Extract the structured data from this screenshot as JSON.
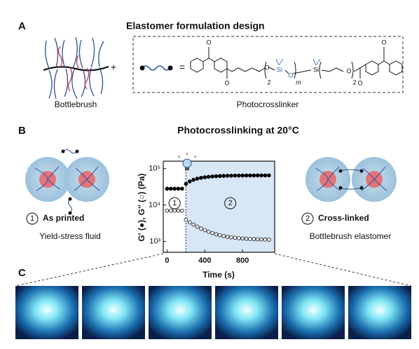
{
  "panel_a": {
    "label": "A",
    "title": "Elastomer formulation design",
    "bottlebrush": "Bottlebrush",
    "plus": "+",
    "equals": "=",
    "photocrosslinker": "Photocrosslinker",
    "structure_labels": [
      "O",
      "O",
      "O",
      "2",
      "Si",
      "O",
      "m",
      "Si",
      "O",
      "O",
      "2",
      "O"
    ]
  },
  "panel_b": {
    "label": "B",
    "title": "Photocrosslinking at 20°C",
    "left_state_number": "1",
    "left_state": "As printed",
    "left_caption": "Yield-stress fluid",
    "right_state_number": "2",
    "right_state": "Cross-linked",
    "right_caption": "Bottlebrush elastomer"
  },
  "chart_data": {
    "type": "scatter",
    "xlabel": "Time (s)",
    "ylabel": "G′ (●), G″ (○) (Pa)",
    "x": [
      0,
      40,
      80,
      120,
      160,
      200,
      240,
      280,
      320,
      360,
      400,
      440,
      480,
      520,
      560,
      600,
      640,
      680,
      720,
      760,
      800,
      840,
      880,
      920,
      960,
      1000,
      1040,
      1080
    ],
    "series": [
      {
        "color": "#000000",
        "marker": "filled",
        "values": [
          28000,
          28000,
          28000,
          28000,
          28000,
          38000,
          44300,
          49150,
          52900,
          55700,
          57900,
          59500,
          60800,
          61800,
          62550,
          63100,
          63560,
          63900,
          64200,
          64350,
          64500,
          64600,
          64700,
          64800,
          64900,
          65000,
          65000,
          65000
        ]
      },
      {
        "color": "#000000",
        "marker": "open",
        "values": [
          7000,
          7000,
          7000,
          7000,
          7000,
          3900,
          3340,
          2900,
          2540,
          2250,
          2020,
          1840,
          1690,
          1570,
          1480,
          1400,
          1340,
          1290,
          1260,
          1220,
          1200,
          1180,
          1160,
          1150,
          1140,
          1130,
          1120,
          1110
        ]
      }
    ],
    "xlim": [
      -40,
      1140
    ],
    "xticks": [
      0,
      400,
      800
    ],
    "ylim": [
      500,
      160000
    ],
    "log_y": true,
    "yticks": [
      {
        "value": 1000,
        "label": "10³"
      },
      {
        "value": 10000,
        "label": "10⁴"
      },
      {
        "value": 100000,
        "label": "10⁵"
      }
    ],
    "illumination_start": 200,
    "shade_color": "#d7e7f6",
    "annotations": [
      "1",
      "2"
    ]
  },
  "panel_c": {
    "label": "C"
  }
}
